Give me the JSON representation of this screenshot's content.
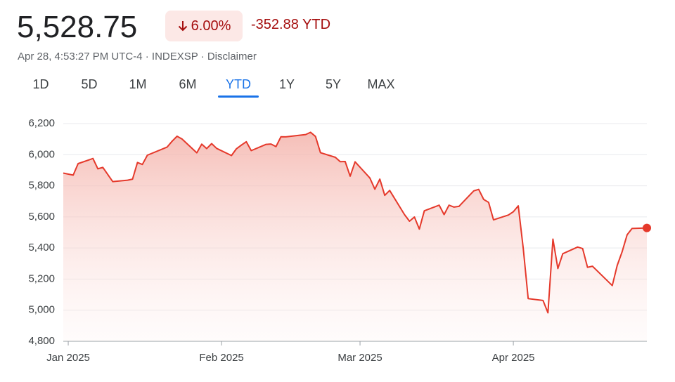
{
  "header": {
    "price": "5,528.75",
    "change_percent": "6.00%",
    "change_ytd": "-352.88 YTD",
    "subtitle": "Apr 28, 4:53:27 PM UTC-4 · INDEXSP · Disclaimer",
    "tabs": [
      "1D",
      "5D",
      "1M",
      "6M",
      "YTD",
      "1Y",
      "5Y",
      "MAX"
    ]
  },
  "chart_data": {
    "type": "line",
    "color": "#e5392b",
    "grid": true,
    "x": [
      0,
      2,
      3,
      6,
      7,
      8,
      10,
      13,
      14,
      15,
      16,
      17,
      21,
      22,
      23,
      24,
      27,
      28,
      29,
      30,
      31,
      34,
      35,
      36,
      37,
      38,
      41,
      42,
      43,
      44,
      45,
      49,
      50,
      51,
      52,
      55,
      56,
      57,
      58,
      59,
      62,
      63,
      64,
      65,
      66,
      69,
      70,
      71,
      72,
      73,
      76,
      77,
      78,
      79,
      80,
      83,
      84,
      85,
      86,
      87,
      90,
      91,
      92,
      93,
      94,
      97,
      98,
      99,
      100,
      101,
      104,
      105,
      106,
      107,
      111,
      112,
      113,
      114,
      115,
      118
    ],
    "values": [
      5881.63,
      5868.55,
      5942.47,
      5975.38,
      5909.03,
      5918.25,
      5827.04,
      5836.22,
      5842.91,
      5949.91,
      5937.34,
      5996.66,
      6049.24,
      6086.37,
      6118.71,
      6101.24,
      6012.28,
      6067.7,
      6039.31,
      6071.17,
      6040.53,
      5994.57,
      6037.88,
      6061.48,
      6083.57,
      6025.99,
      6066.44,
      6068.5,
      6051.97,
      6115.07,
      6114.63,
      6129.58,
      6144.15,
      6117.52,
      6013.13,
      5983.25,
      5955.25,
      5956.06,
      5861.57,
      5954.5,
      5849.72,
      5778.15,
      5842.63,
      5738.52,
      5770.2,
      5614.56,
      5572.07,
      5599.3,
      5521.52,
      5638.94,
      5675.12,
      5614.66,
      5675.29,
      5662.89,
      5667.56,
      5767.57,
      5776.65,
      5712.2,
      5693.31,
      5580.94,
      5611.85,
      5633.07,
      5670.97,
      5396.52,
      5074.08,
      5062.25,
      4982.77,
      5456.9,
      5268.05,
      5363.36,
      5405.97,
      5396.63,
      5275.7,
      5282.7,
      5158.2,
      5287.76,
      5375.86,
      5484.77,
      5525.21,
      5528.75
    ],
    "xlim": [
      0,
      118
    ],
    "xticks": [
      {
        "value": 1,
        "label": "Jan 2025"
      },
      {
        "value": 32,
        "label": "Feb 2025"
      },
      {
        "value": 60,
        "label": "Mar 2025"
      },
      {
        "value": 91,
        "label": "Apr 2025"
      }
    ],
    "ylim": [
      4800,
      6200
    ],
    "yticks": [
      {
        "value": 4800,
        "label": "4,800"
      },
      {
        "value": 5000,
        "label": "5,000"
      },
      {
        "value": 5200,
        "label": "5,200"
      },
      {
        "value": 5400,
        "label": "5,400"
      },
      {
        "value": 5600,
        "label": "5,600"
      },
      {
        "value": 5800,
        "label": "5,800"
      },
      {
        "value": 6000,
        "label": "6,000"
      },
      {
        "value": 6200,
        "label": "6,200"
      }
    ]
  }
}
